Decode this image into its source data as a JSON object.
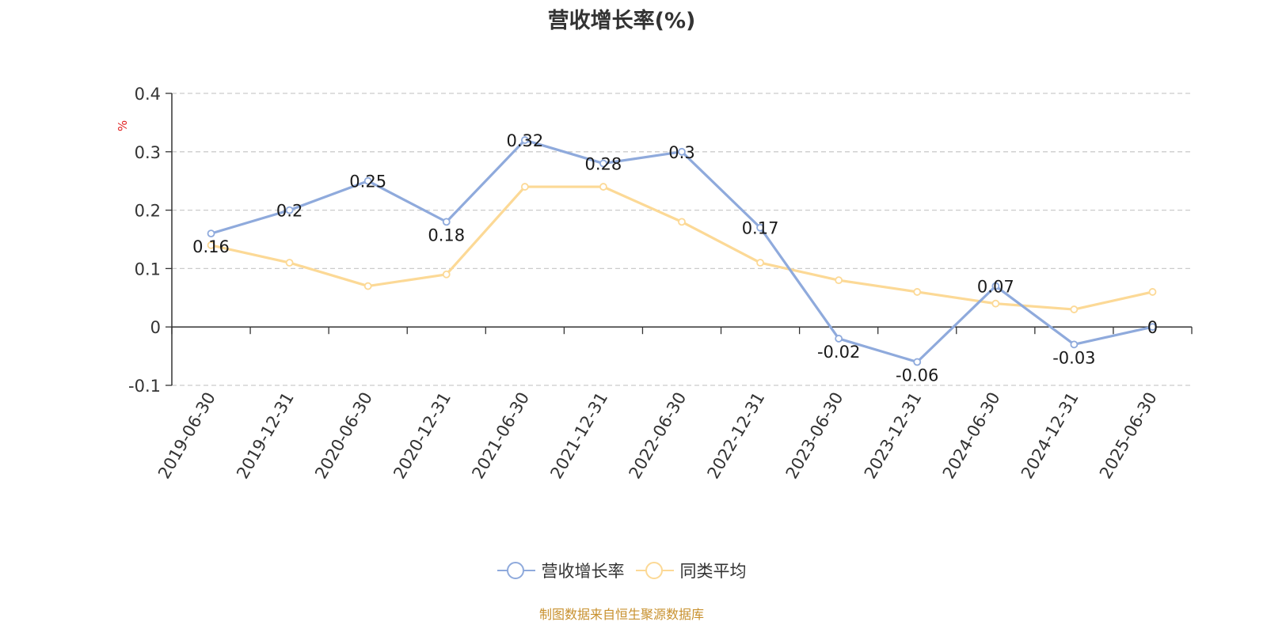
{
  "chart_data": {
    "type": "line",
    "title": "营收增长率(%)",
    "ylabel": "%",
    "categories": [
      "2019-06-30",
      "2019-12-31",
      "2020-06-30",
      "2020-12-31",
      "2021-06-30",
      "2021-12-31",
      "2022-06-30",
      "2022-12-31",
      "2023-06-30",
      "2023-12-31",
      "2024-06-30",
      "2024-12-31",
      "2025-06-30"
    ],
    "y_ticks": [
      "0.4",
      "0.3",
      "0.2",
      "0.1",
      "0",
      "-0.1"
    ],
    "ylim": [
      -0.1,
      0.4
    ],
    "grid": true,
    "legend_position": "bottom",
    "series": [
      {
        "name": "营收增长率",
        "color": "#8faadc",
        "values": [
          0.16,
          0.2,
          0.25,
          0.18,
          0.32,
          0.28,
          0.3,
          0.17,
          -0.02,
          -0.06,
          0.07,
          -0.03,
          0
        ],
        "labels": [
          "0.16",
          "0.2",
          "0.25",
          "0.18",
          "0.32",
          "0.28",
          "0.3",
          "0.17",
          "-0.02",
          "-0.06",
          "0.07",
          "-0.03",
          "0"
        ]
      },
      {
        "name": "同类平均",
        "color": "#fcd996",
        "values": [
          0.14,
          0.11,
          0.07,
          0.09,
          0.24,
          0.24,
          0.18,
          0.11,
          0.08,
          0.06,
          0.04,
          0.03,
          0.06
        ]
      }
    ]
  },
  "legend": {
    "items": [
      {
        "label": "营收增长率",
        "color": "#8faadc"
      },
      {
        "label": "同类平均",
        "color": "#fcd996"
      }
    ]
  },
  "source_text": "制图数据来自恒生聚源数据库"
}
